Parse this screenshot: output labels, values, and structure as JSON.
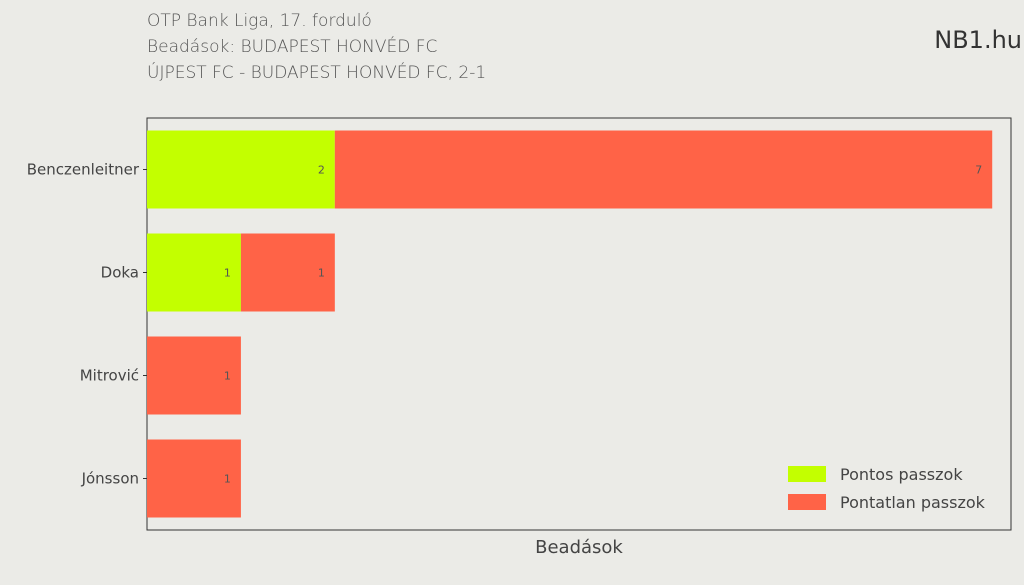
{
  "header": {
    "title": "OTP Bank Liga, 17. forduló",
    "subtitle": "Beadások: BUDAPEST HONVÉD FC",
    "match": "ÚJPEST FC - BUDAPEST HONVÉD FC, 2-1",
    "brand": "NB1.hu"
  },
  "chart_data": {
    "type": "bar",
    "orientation": "horizontal",
    "stacked": true,
    "categories": [
      "Benczenleitner",
      "Doka",
      "Mitrović",
      "Jónsson"
    ],
    "series": [
      {
        "name": "Pontos passzok",
        "values": [
          2,
          1,
          0,
          0
        ],
        "color": "#c3ff00"
      },
      {
        "name": "Pontatlan passzok",
        "values": [
          7,
          1,
          1,
          1
        ],
        "color": "#ff6347"
      }
    ],
    "xlabel": "Beadások",
    "xlim": [
      0,
      9.2
    ],
    "grid": false,
    "legend_position": "bottom-right"
  }
}
